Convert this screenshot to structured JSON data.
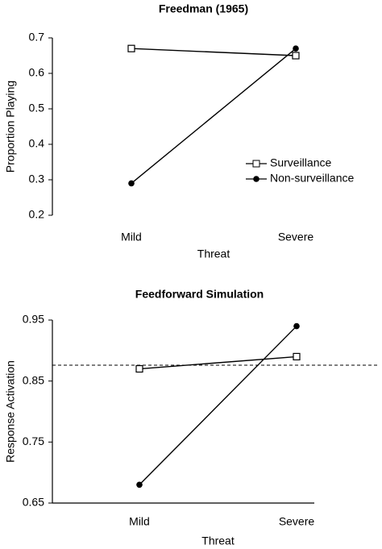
{
  "chart_data": [
    {
      "type": "line",
      "title": "Freedman (1965)",
      "ylabel": "Proportion Playing",
      "xlabel": "Threat",
      "categories": [
        "Mild",
        "Severe"
      ],
      "ylim": [
        0.2,
        0.7
      ],
      "yticks": [
        0.2,
        0.3,
        0.4,
        0.5,
        0.6,
        0.7
      ],
      "legend": "right",
      "series": [
        {
          "name": "Surveillance",
          "color": "#000000",
          "marker": "open-square",
          "values": [
            0.67,
            0.65
          ]
        },
        {
          "name": "Non-surveillance",
          "color": "#000000",
          "marker": "filled-circle",
          "values": [
            0.29,
            0.67
          ]
        }
      ]
    },
    {
      "type": "line",
      "title": "Feedforward Simulation",
      "ylabel": "Response Activation",
      "xlabel": "Threat",
      "categories": [
        "Mild",
        "Severe"
      ],
      "ylim": [
        0.65,
        0.95
      ],
      "yticks": [
        0.65,
        0.75,
        0.85,
        0.95
      ],
      "reference_line": 0.876,
      "series": [
        {
          "name": "Surveillance",
          "color": "#000000",
          "marker": "open-square",
          "values": [
            0.87,
            0.89
          ]
        },
        {
          "name": "Non-surveillance",
          "color": "#000000",
          "marker": "filled-circle",
          "values": [
            0.68,
            0.94
          ]
        }
      ]
    }
  ]
}
